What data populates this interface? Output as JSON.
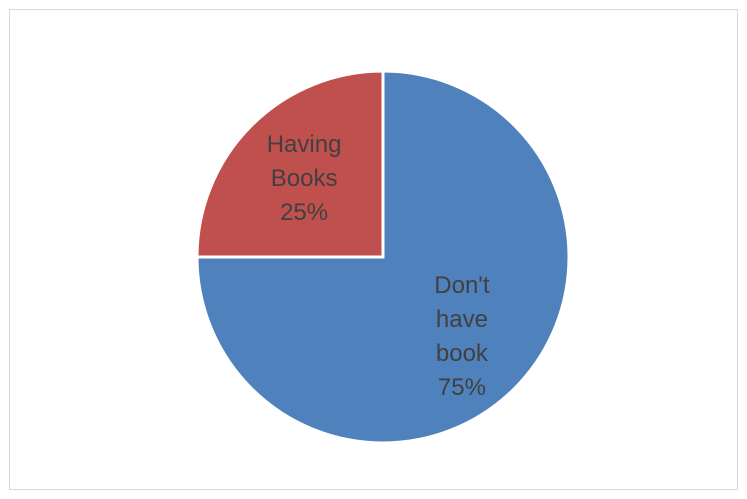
{
  "chart_data": {
    "type": "pie",
    "categories": [
      "Don't have book",
      "Having Books"
    ],
    "values": [
      75,
      25
    ],
    "colors": [
      "#4f81bd",
      "#c0504d"
    ],
    "data_labels": [
      [
        "Don't",
        "have",
        "book",
        "75%"
      ],
      [
        "Having",
        "Books",
        "25%"
      ]
    ],
    "title": "",
    "legend": "none"
  }
}
